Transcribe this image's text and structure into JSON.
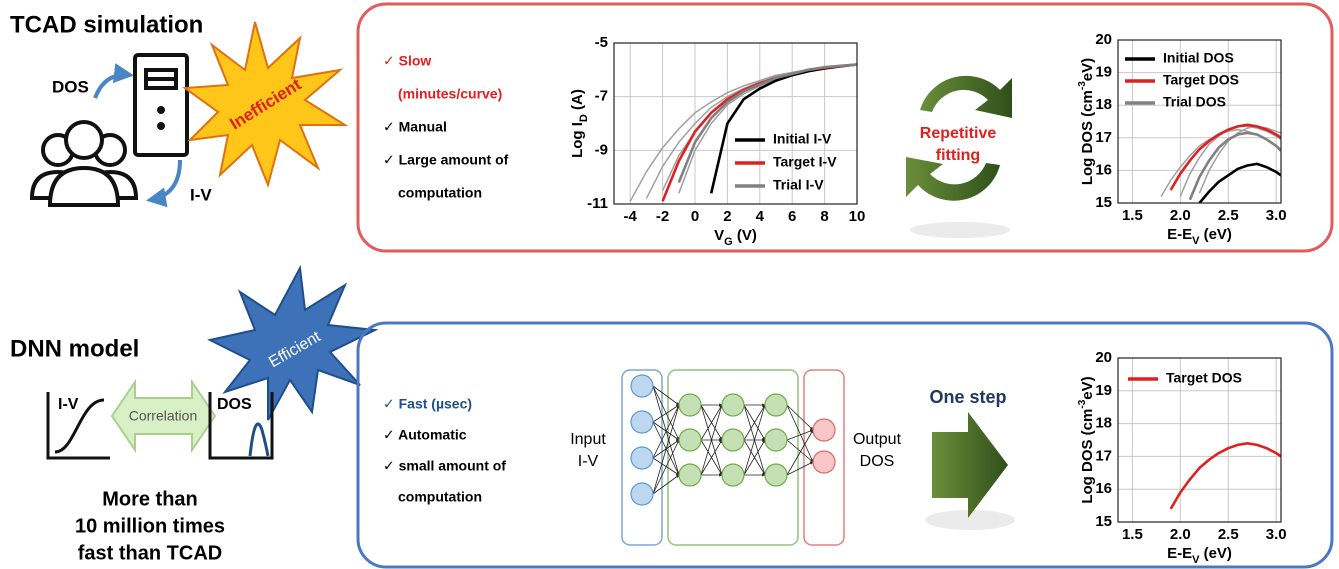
{
  "top": {
    "title": "TCAD simulation",
    "dos_label": "DOS",
    "iv_label": "I-V",
    "burst": "Inefficient",
    "items": [
      "✓ Slow",
      "(minutes/curve)",
      "✓ Manual",
      "✓ Large amount of",
      "computation"
    ],
    "loop_text": [
      "Repetitive",
      "fitting"
    ]
  },
  "bottom": {
    "title": "DNN model",
    "burst": "Efficient",
    "iv_label": "I-V",
    "correlation": "Correlation",
    "dos_label": "DOS",
    "claim": [
      "More than",
      "10 million times",
      "fast than TCAD"
    ],
    "items": [
      "✓ Fast (µsec)",
      "✓ Automatic",
      "✓ small amount of",
      "computation"
    ],
    "input": [
      "Input",
      "I-V"
    ],
    "output": [
      "Output",
      "DOS"
    ],
    "step": "One step"
  },
  "chart_data": [
    {
      "type": "line",
      "xlabel": {
        "text": "V",
        "sub": "G",
        "tail": " (V)"
      },
      "ylabel": {
        "text": "Log I",
        "sub": "D",
        "tail": " (A)"
      },
      "x": [
        -4,
        -3,
        -2,
        -1,
        0,
        1,
        2,
        3,
        4,
        5,
        6,
        7,
        8,
        9,
        10
      ],
      "xlim": [
        -5,
        10
      ],
      "xticks": [
        -4,
        -2,
        0,
        2,
        4,
        6,
        8,
        10
      ],
      "ylim": [
        -11,
        -5
      ],
      "yticks": [
        -11,
        -9,
        -7,
        -5
      ],
      "grid": true,
      "series": [
        {
          "color": "#a0a0a0",
          "values": [
            null,
            -10.8,
            -9.6,
            -8.7,
            -8.0,
            -7.4,
            -7.0,
            -6.7,
            -6.45,
            -6.25,
            -6.1,
            -6.0,
            -5.9,
            -5.85,
            -5.8
          ]
        },
        {
          "color": "#a0a0a0",
          "values": [
            null,
            null,
            -10.5,
            -9.2,
            -8.3,
            -7.6,
            -7.1,
            -6.75,
            -6.5,
            -6.3,
            -6.1,
            -6.0,
            -5.9,
            -5.85,
            -5.8
          ]
        },
        {
          "color": "#a0a0a0",
          "values": [
            -10.9,
            -9.8,
            -8.9,
            -8.2,
            -7.6,
            -7.2,
            -6.85,
            -6.6,
            -6.4,
            -6.2,
            -6.1,
            -6.0,
            -5.9,
            -5.85,
            -5.8
          ]
        },
        {
          "color": "#a0a0a0",
          "values": [
            null,
            null,
            null,
            -10.6,
            -9.0,
            -8.0,
            -7.3,
            -6.9,
            -6.6,
            -6.35,
            -6.15,
            -6.0,
            -5.9,
            -5.85,
            -5.8
          ]
        },
        {
          "name": "Initial I-V",
          "color": "#000000",
          "values": [
            null,
            null,
            null,
            null,
            null,
            -10.6,
            -8.0,
            -7.1,
            -6.7,
            -6.4,
            -6.2,
            -6.05,
            -5.95,
            -5.87,
            -5.8
          ]
        },
        {
          "name": "Target I-V",
          "color": "#e02020",
          "values": [
            null,
            null,
            -10.9,
            -9.4,
            -8.3,
            -7.6,
            -7.1,
            -6.75,
            -6.5,
            -6.3,
            -6.15,
            -6.0,
            -5.92,
            -5.86,
            -5.8
          ]
        },
        {
          "name": "Trial I-V",
          "color": "#808080",
          "values": [
            null,
            null,
            null,
            -10.2,
            -8.7,
            -7.8,
            -7.2,
            -6.8,
            -6.55,
            -6.3,
            -6.15,
            -6.0,
            -5.9,
            -5.85,
            -5.8
          ]
        }
      ]
    },
    {
      "type": "line",
      "xlabel": {
        "text": "E-E",
        "sub": "V",
        "tail": " (eV)"
      },
      "ylabel": {
        "text": "Log DOS (cm",
        "sup": "-3",
        "tail": "eV)"
      },
      "x": [
        1.8,
        1.9,
        2.0,
        2.1,
        2.2,
        2.3,
        2.4,
        2.5,
        2.6,
        2.7,
        2.8,
        2.9,
        3.0,
        3.05
      ],
      "xlim": [
        1.35,
        3.05
      ],
      "xticks": [
        1.5,
        {
          "value": 2,
          "label": "2.0"
        },
        2.5,
        {
          "value": 3,
          "label": "3.0"
        }
      ],
      "ylim": [
        15,
        20
      ],
      "yticks": [
        15,
        16,
        17,
        18,
        19,
        20
      ],
      "grid": true,
      "series": [
        {
          "color": "#a0a0a0",
          "values": [
            15.2,
            15.7,
            16.1,
            16.45,
            16.75,
            16.95,
            17.1,
            17.2,
            17.25,
            17.2,
            17.1,
            16.95,
            16.75,
            16.65
          ]
        },
        {
          "color": "#a0a0a0",
          "values": [
            null,
            null,
            15.2,
            15.9,
            16.4,
            16.8,
            17.05,
            17.25,
            17.35,
            17.35,
            17.3,
            17.2,
            17.05,
            16.95
          ]
        },
        {
          "color": "#a0a0a0",
          "values": [
            null,
            null,
            null,
            null,
            15.3,
            16.0,
            16.5,
            16.9,
            17.15,
            17.3,
            17.35,
            17.3,
            17.2,
            17.15
          ]
        },
        {
          "name": "Initial DOS",
          "color": "#000000",
          "values": [
            null,
            null,
            null,
            null,
            15.0,
            15.35,
            15.65,
            15.85,
            16.05,
            16.15,
            16.2,
            16.1,
            15.95,
            15.85
          ]
        },
        {
          "name": "Target DOS",
          "color": "#e02020",
          "values": [
            null,
            15.4,
            15.9,
            16.3,
            16.65,
            16.9,
            17.1,
            17.25,
            17.35,
            17.4,
            17.35,
            17.25,
            17.1,
            17.0
          ]
        },
        {
          "name": "Trial DOS",
          "color": "#808080",
          "values": [
            null,
            null,
            null,
            15.1,
            15.8,
            16.3,
            16.7,
            16.95,
            17.1,
            17.15,
            17.1,
            16.95,
            16.75,
            16.6
          ]
        }
      ]
    },
    {
      "type": "line",
      "xlabel": {
        "text": "E-E",
        "sub": "V",
        "tail": " (eV)"
      },
      "ylabel": {
        "text": "Log DOS (cm",
        "sup": "-3",
        "tail": "eV)"
      },
      "x": [
        1.8,
        1.9,
        2.0,
        2.1,
        2.2,
        2.3,
        2.4,
        2.5,
        2.6,
        2.7,
        2.8,
        2.9,
        3.0,
        3.05
      ],
      "xlim": [
        1.35,
        3.05
      ],
      "xticks": [
        1.5,
        {
          "value": 2,
          "label": "2.0"
        },
        2.5,
        {
          "value": 3,
          "label": "3.0"
        }
      ],
      "ylim": [
        15,
        20
      ],
      "yticks": [
        15,
        16,
        17,
        18,
        19,
        20
      ],
      "grid": true,
      "series": [
        {
          "name": "Target DOS",
          "color": "#e02020",
          "values": [
            null,
            15.4,
            15.9,
            16.3,
            16.65,
            16.9,
            17.1,
            17.25,
            17.35,
            17.4,
            17.35,
            17.25,
            17.1,
            17.0
          ]
        }
      ]
    }
  ]
}
